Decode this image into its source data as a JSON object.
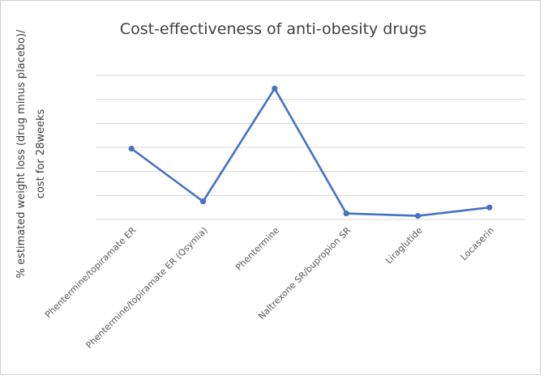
{
  "chart_data": {
    "type": "line",
    "title": "Cost-effectiveness of anti-obesity drugs",
    "xlabel": "",
    "ylabel": [
      "% estimated weight loss (drug minus placebo)/",
      "cost for 28weeks"
    ],
    "categories": [
      "Phentermine/topiramate ER",
      "Phentermine/topiramate ER (Qsymia)",
      "Phentermine",
      "Naltrexone SR/bupropion SR",
      "Liraglutide",
      "Locaserin"
    ],
    "series": [
      {
        "values": [
          2.95,
          0.75,
          5.45,
          0.25,
          0.15,
          0.5
        ]
      }
    ],
    "ylim": [
      0,
      6
    ],
    "y_gridlines": 6,
    "y_tick_labels_shown": false,
    "grid": true,
    "legend": "none",
    "colors": {
      "series": "#4472c4",
      "grid": "#d9d9d9",
      "text": "#404040"
    }
  }
}
